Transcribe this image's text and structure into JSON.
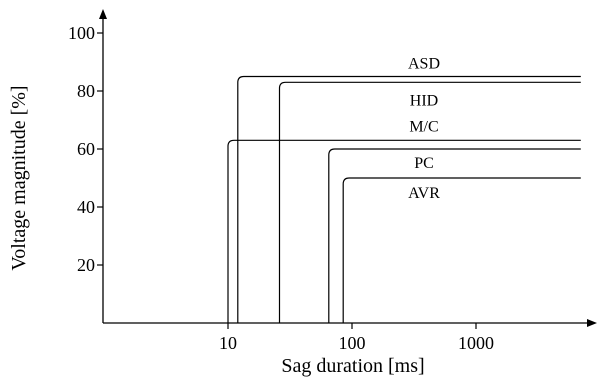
{
  "chart_data": {
    "type": "line",
    "xscale": "log",
    "xlabel": "Sag duration [ms]",
    "ylabel": "Voltage magnitude [%]",
    "xlim": [
      1,
      7000
    ],
    "ylim": [
      0,
      100
    ],
    "xticks": [
      {
        "value": 10,
        "label": "10"
      },
      {
        "value": 100,
        "label": "100"
      },
      {
        "value": 1000,
        "label": "1000"
      }
    ],
    "yticks": [
      {
        "value": 20,
        "label": "20"
      },
      {
        "value": 40,
        "label": "40"
      },
      {
        "value": 60,
        "label": "60"
      },
      {
        "value": 80,
        "label": "80"
      },
      {
        "value": 100,
        "label": "100"
      }
    ],
    "series": [
      {
        "name": "ASD",
        "color": "#000000",
        "points": [
          [
            12,
            0
          ],
          [
            12,
            85
          ],
          [
            7000,
            85
          ]
        ]
      },
      {
        "name": "HID",
        "color": "#000000",
        "points": [
          [
            26,
            0
          ],
          [
            26,
            83
          ],
          [
            7000,
            83
          ]
        ]
      },
      {
        "name": "M/C",
        "color": "#000000",
        "points": [
          [
            10,
            0
          ],
          [
            10,
            63
          ],
          [
            7000,
            63
          ]
        ]
      },
      {
        "name": "PC",
        "color": "#000000",
        "points": [
          [
            65,
            0
          ],
          [
            65,
            60
          ],
          [
            7000,
            60
          ]
        ]
      },
      {
        "name": "AVR",
        "color": "#000000",
        "points": [
          [
            85,
            0
          ],
          [
            85,
            50
          ],
          [
            7000,
            50
          ]
        ]
      }
    ]
  }
}
